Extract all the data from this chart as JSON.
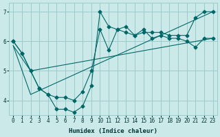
{
  "xlabel": "Humidex (Indice chaleur)",
  "ylabel": "",
  "xlim": [
    -0.5,
    23.5
  ],
  "ylim": [
    3.5,
    7.3
  ],
  "background_color": "#cce9e9",
  "grid_color": "#99cccc",
  "line_color": "#006666",
  "yticks": [
    4,
    5,
    6,
    7
  ],
  "xticks": [
    0,
    1,
    2,
    3,
    4,
    5,
    6,
    7,
    8,
    9,
    10,
    11,
    12,
    13,
    14,
    15,
    16,
    17,
    18,
    19,
    20,
    21,
    22,
    23
  ],
  "series1_x": [
    0,
    1,
    2,
    3,
    4,
    5,
    6,
    7,
    8,
    9,
    10,
    11,
    12,
    13,
    14,
    15,
    16,
    17,
    18,
    19,
    20,
    21,
    22,
    23
  ],
  "series1_y": [
    6.0,
    5.6,
    5.0,
    4.4,
    4.2,
    4.1,
    4.1,
    4.0,
    4.3,
    5.0,
    6.4,
    5.7,
    6.4,
    6.3,
    6.2,
    6.4,
    6.1,
    6.2,
    6.1,
    6.1,
    6.0,
    5.8,
    6.1,
    6.1
  ],
  "series2_x": [
    0,
    1,
    2,
    3,
    4,
    5,
    6,
    7,
    8,
    9,
    10,
    11,
    12,
    13,
    14,
    15,
    16,
    17,
    18,
    19,
    20,
    21,
    22,
    23
  ],
  "series2_y": [
    6.0,
    5.6,
    5.0,
    4.4,
    4.2,
    3.7,
    3.7,
    3.6,
    3.8,
    4.5,
    7.0,
    6.5,
    6.4,
    6.5,
    6.2,
    6.3,
    6.3,
    6.3,
    6.2,
    6.2,
    6.2,
    6.8,
    7.0,
    7.0
  ],
  "series3_x": [
    0,
    2,
    23
  ],
  "series3_y": [
    5.85,
    5.0,
    6.1
  ],
  "series4_x": [
    0,
    2,
    23
  ],
  "series4_y": [
    5.85,
    4.2,
    7.0
  ],
  "marker": "D",
  "markersize": 2.5
}
